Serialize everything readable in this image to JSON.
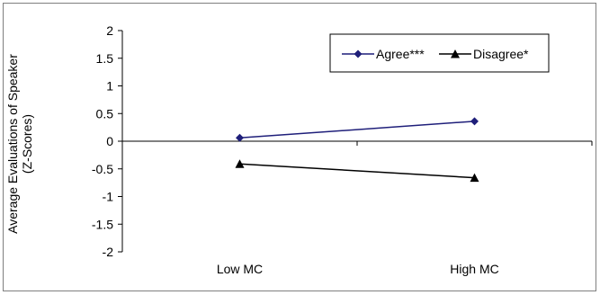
{
  "chart_data": {
    "type": "line",
    "categories": [
      "Low MC",
      "High MC"
    ],
    "series": [
      {
        "name": "Agree***",
        "values": [
          0.06,
          0.36
        ],
        "color": "#1f1f7a",
        "marker": "diamond"
      },
      {
        "name": "Disagree*",
        "values": [
          -0.41,
          -0.66
        ],
        "color": "#000000",
        "marker": "triangle"
      }
    ],
    "yticks": [
      "2",
      "1.5",
      "1",
      "0.5",
      "0",
      "-0.5",
      "-1",
      "-1.5",
      "-2"
    ],
    "ylim": [
      -2,
      2
    ],
    "ylabel_line1": "Average Evaluations of Speaker",
    "ylabel_line2": "(Z-Scores)",
    "grid": false,
    "legend_position": "top-right"
  }
}
